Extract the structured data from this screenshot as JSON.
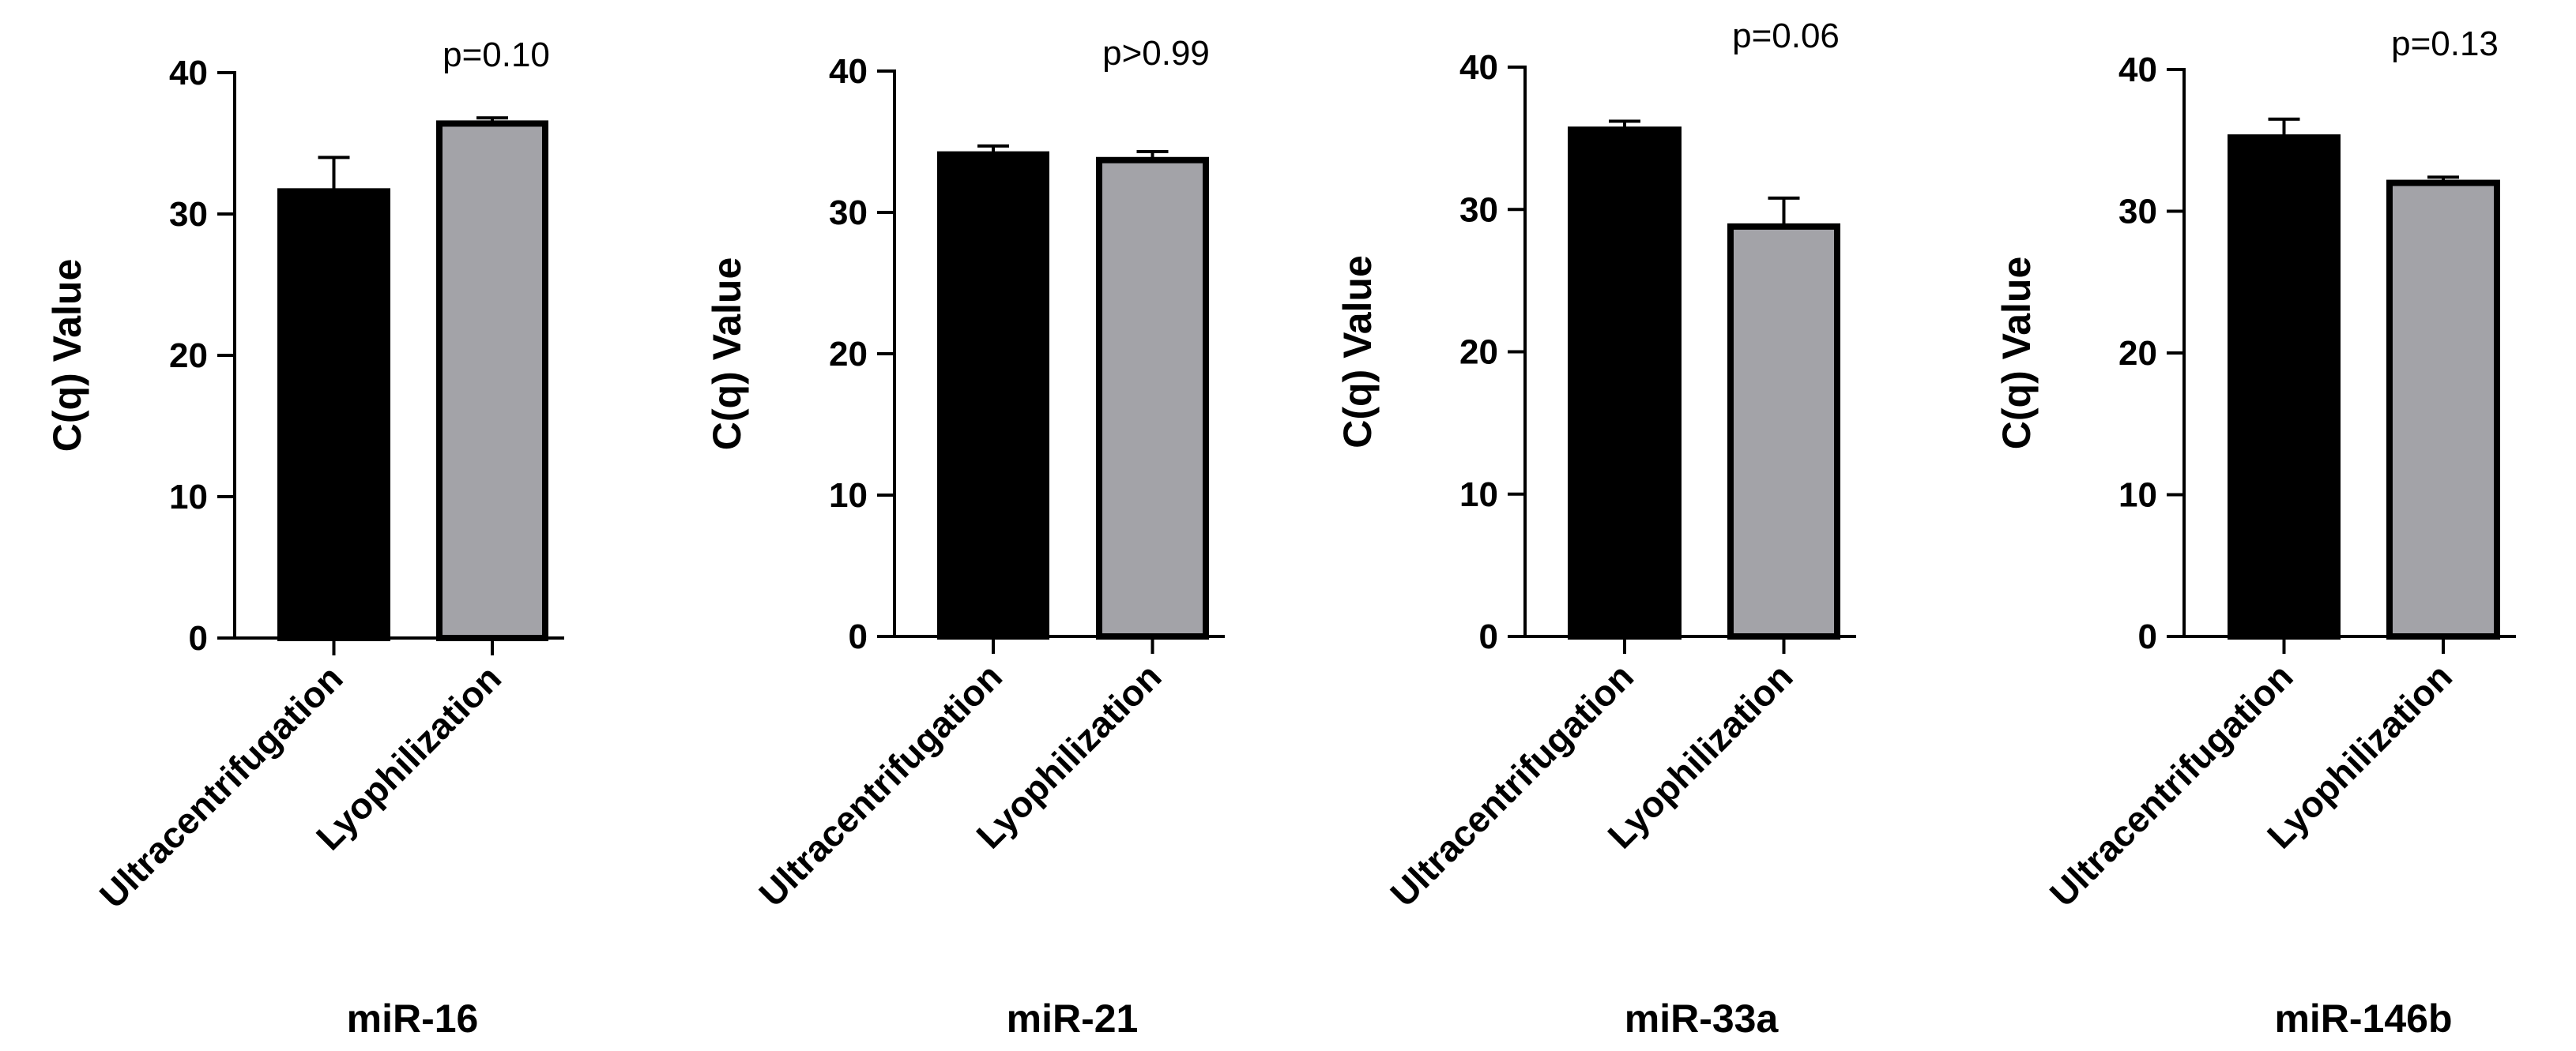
{
  "chart_data": [
    {
      "type": "bar",
      "title": "miR-16",
      "ylabel": "C(q) Value",
      "xlabel": "",
      "ylim": [
        0,
        40
      ],
      "yticks": [
        0,
        10,
        20,
        30,
        40
      ],
      "categories": [
        "Ultracentrifugation",
        "Lyophilization"
      ],
      "values": [
        31.6,
        36.4
      ],
      "errors": [
        2.4,
        0.4
      ],
      "colors": [
        "#000000",
        "#a3a3a8"
      ],
      "annotation": "p=0.10"
    },
    {
      "type": "bar",
      "title": "miR-21",
      "ylabel": "C(q) Value",
      "xlabel": "",
      "ylim": [
        0,
        40
      ],
      "yticks": [
        0,
        10,
        20,
        30,
        40
      ],
      "categories": [
        "Ultracentrifugation",
        "Lyophilization"
      ],
      "values": [
        34.1,
        33.7
      ],
      "errors": [
        0.6,
        0.6
      ],
      "colors": [
        "#000000",
        "#a3a3a8"
      ],
      "annotation": "p>0.99"
    },
    {
      "type": "bar",
      "title": "miR-33a",
      "ylabel": "C(q) Value",
      "xlabel": "",
      "ylim": [
        0,
        40
      ],
      "yticks": [
        0,
        10,
        20,
        30,
        40
      ],
      "categories": [
        "Ultracentrifugation",
        "Lyophilization"
      ],
      "values": [
        35.6,
        28.8
      ],
      "errors": [
        0.6,
        2.0
      ],
      "colors": [
        "#000000",
        "#a3a3a8"
      ],
      "annotation": "p=0.06"
    },
    {
      "type": "bar",
      "title": "miR-146b",
      "ylabel": "C(q) Value",
      "xlabel": "",
      "ylim": [
        0,
        40
      ],
      "yticks": [
        0,
        10,
        20,
        30,
        40
      ],
      "categories": [
        "Ultracentrifugation",
        "Lyophilization"
      ],
      "values": [
        35.2,
        32.0
      ],
      "errors": [
        1.3,
        0.4
      ],
      "colors": [
        "#000000",
        "#a3a3a8"
      ],
      "annotation": "p=0.13"
    }
  ]
}
